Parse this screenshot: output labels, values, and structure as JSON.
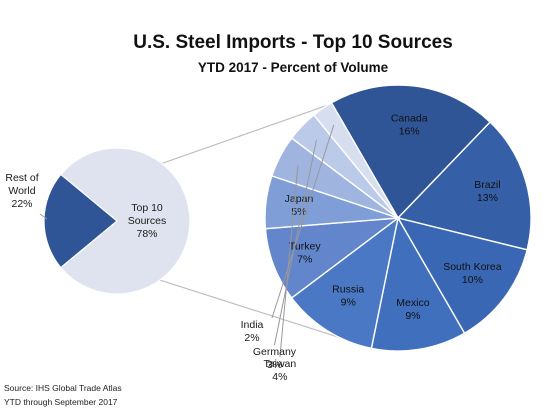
{
  "chart_data": {
    "type": "pie",
    "title": "U.S. Steel Imports - Top 10 Sources",
    "subtitle": "YTD 2017 - Percent of Volume",
    "main_pie": {
      "slices": [
        {
          "label": "Top 10 Sources",
          "value": 78,
          "display": "78%",
          "color": "#dfe3f0"
        },
        {
          "label": "Rest of World",
          "value": 22,
          "display": "22%",
          "color": "#2f5597"
        }
      ]
    },
    "breakdown_pie": {
      "slices": [
        {
          "label": "Canada",
          "value": 16,
          "display": "16%",
          "color": "#2f5597"
        },
        {
          "label": "Brazil",
          "value": 13,
          "display": "13%",
          "color": "#3560a8"
        },
        {
          "label": "South Korea",
          "value": 10,
          "display": "10%",
          "color": "#3a67b4"
        },
        {
          "label": "Mexico",
          "value": 9,
          "display": "9%",
          "color": "#406fbd"
        },
        {
          "label": "Russia",
          "value": 9,
          "display": "9%",
          "color": "#4a78c4"
        },
        {
          "label": "Turkey",
          "value": 7,
          "display": "7%",
          "color": "#6285cc"
        },
        {
          "label": "Japan",
          "value": 5,
          "display": "5%",
          "color": "#7f9dd6"
        },
        {
          "label": "Taiwan",
          "value": 4,
          "display": "4%",
          "color": "#9fb4df"
        },
        {
          "label": "Germany",
          "value": 3,
          "display": "3%",
          "color": "#bccae9"
        },
        {
          "label": "India",
          "value": 2,
          "display": "2%",
          "color": "#d6deef"
        }
      ]
    },
    "source_lines": [
      "Source: IHS Global Trade Atlas",
      "YTD through September 2017"
    ]
  }
}
